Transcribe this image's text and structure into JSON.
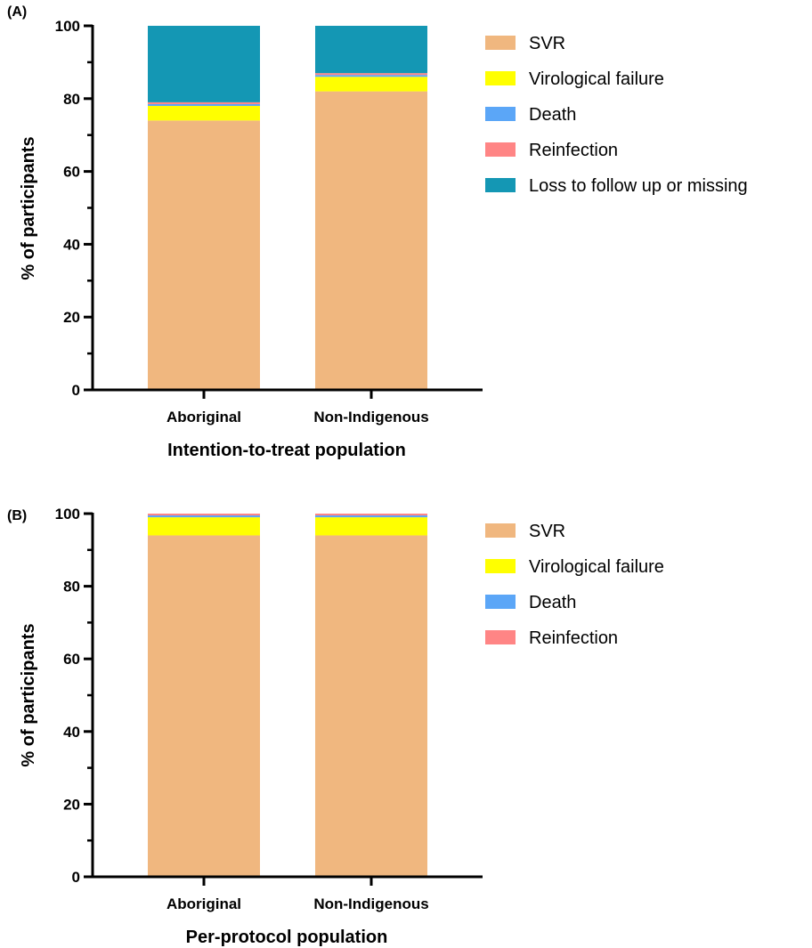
{
  "chart_data": [
    {
      "panel_label": "(A)",
      "type": "bar",
      "stacked": true,
      "categories": [
        "Aboriginal",
        "Non-Indigenous"
      ],
      "xlabel": "Intention-to-treat population",
      "ylabel": "% of participants",
      "ylim": [
        0,
        100
      ],
      "yticks": [
        0,
        20,
        40,
        60,
        80,
        100
      ],
      "legend_position": "right",
      "series": [
        {
          "name": "SVR",
          "color": "#F0B77F",
          "values": [
            74.0,
            82.0
          ]
        },
        {
          "name": "Virological failure",
          "color": "#FFFF00",
          "values": [
            4.0,
            4.0
          ]
        },
        {
          "name": "Death",
          "color": "#5BA6F7",
          "values": [
            0.5,
            0.5
          ]
        },
        {
          "name": "Reinfection",
          "color": "#FF8585",
          "values": [
            0.5,
            0.5
          ]
        },
        {
          "name": "Loss to follow up or missing",
          "color": "#1497B4",
          "values": [
            21.0,
            13.0
          ]
        }
      ]
    },
    {
      "panel_label": "(B)",
      "type": "bar",
      "stacked": true,
      "categories": [
        "Aboriginal",
        "Non-Indigenous"
      ],
      "xlabel": "Per-protocol population",
      "ylabel": "% of participants",
      "ylim": [
        0,
        100
      ],
      "yticks": [
        0,
        20,
        40,
        60,
        80,
        100
      ],
      "legend_position": "right",
      "series": [
        {
          "name": "SVR",
          "color": "#F0B77F",
          "values": [
            94.0,
            94.0
          ]
        },
        {
          "name": "Virological failure",
          "color": "#FFFF00",
          "values": [
            5.0,
            5.0
          ]
        },
        {
          "name": "Death",
          "color": "#5BA6F7",
          "values": [
            0.5,
            0.5
          ]
        },
        {
          "name": "Reinfection",
          "color": "#FF8585",
          "values": [
            0.5,
            0.5
          ]
        }
      ]
    }
  ]
}
